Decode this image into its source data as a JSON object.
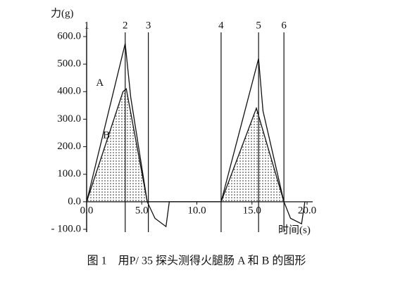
{
  "chart_data": {
    "type": "line",
    "y_label": "力(g)",
    "x_label": "时间(s)",
    "caption": "图 1　用P/ 35 探头测得火腿肠 A 和 B 的图形",
    "xlim": [
      0,
      20
    ],
    "ylim": [
      -100,
      600
    ],
    "xticks": [
      {
        "value": 0,
        "label": "0.0"
      },
      {
        "value": 5,
        "label": "5.0"
      },
      {
        "value": 10,
        "label": "10.0"
      },
      {
        "value": 15,
        "label": "15.0"
      },
      {
        "value": 20,
        "label": "20.0"
      }
    ],
    "yticks": [
      {
        "value": -100,
        "label": "- 100.0"
      },
      {
        "value": 0,
        "label": "0.0"
      },
      {
        "value": 100,
        "label": "100.0"
      },
      {
        "value": 200,
        "label": "200.0"
      },
      {
        "value": 300,
        "label": "300.0"
      },
      {
        "value": 400,
        "label": "400.0"
      },
      {
        "value": 500,
        "label": "500.0"
      },
      {
        "value": 600,
        "label": "600.0"
      }
    ],
    "markers": [
      {
        "label": "1",
        "x": 0
      },
      {
        "label": "2",
        "x": 3.5
      },
      {
        "label": "3",
        "x": 5.6
      },
      {
        "label": "4",
        "x": 12.2
      },
      {
        "label": "5",
        "x": 15.6
      },
      {
        "label": "6",
        "x": 17.9
      }
    ],
    "series": [
      {
        "name": "A",
        "color": "#111111",
        "x": [
          0,
          3.5,
          4.0,
          5.5,
          6.2,
          7.2,
          7.5,
          12.2,
          15.6,
          16.0,
          17.9,
          18.5,
          19.5,
          19.8
        ],
        "values": [
          0,
          575,
          380,
          0,
          -60,
          -90,
          0,
          0,
          520,
          330,
          0,
          -60,
          -80,
          0
        ]
      },
      {
        "name": "B",
        "color": "#111111",
        "x": [
          0,
          3.3,
          3.6,
          5.5,
          12.2,
          15.4,
          17.9
        ],
        "values": [
          0,
          400,
          410,
          0,
          0,
          340,
          0
        ]
      }
    ]
  }
}
